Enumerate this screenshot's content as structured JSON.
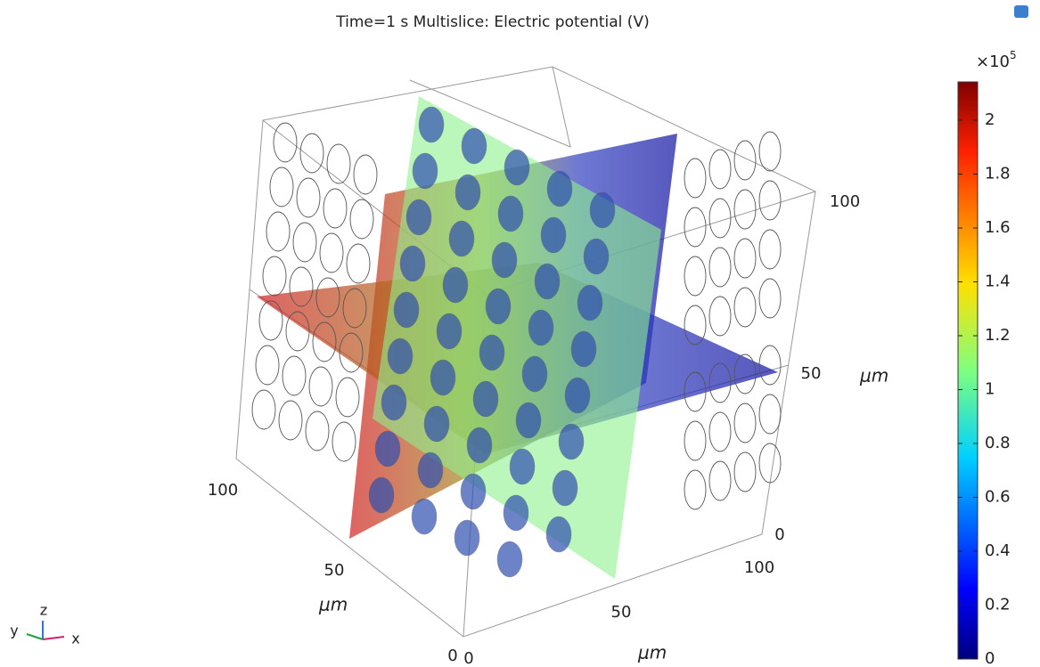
{
  "title": "Time=1 s   Multislice: Electric potential (V)",
  "colorbar": {
    "multiplier": "×10",
    "exponent": "5",
    "ticks": [
      0,
      0.2,
      0.4,
      0.6,
      0.8,
      1,
      1.2,
      1.4,
      1.6,
      1.8,
      2
    ]
  },
  "axes": {
    "x": {
      "ticks": [
        0,
        50,
        100
      ],
      "unit": "μm"
    },
    "y": {
      "ticks": [
        100,
        50,
        0
      ],
      "unit": "μm"
    },
    "z": {
      "ticks": [
        0,
        50,
        100
      ],
      "unit": "μm"
    }
  },
  "triad": {
    "x": "x",
    "y": "y",
    "z": "z"
  }
}
